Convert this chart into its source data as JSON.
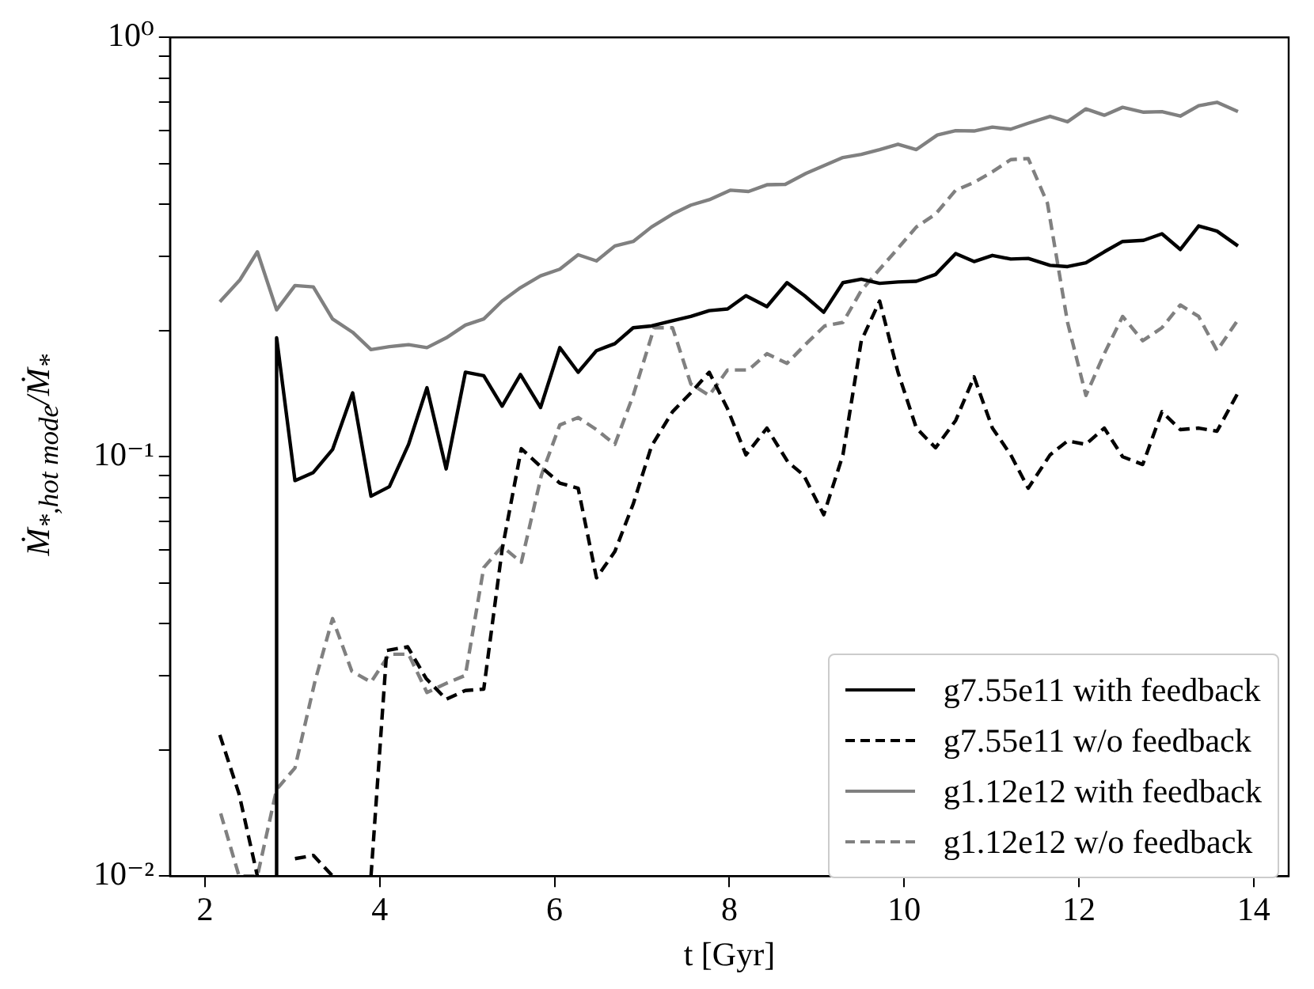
{
  "chart_data": {
    "type": "line",
    "xlabel": "t [Gyr]",
    "ylabel": "Ṁ$_{*,hot mode}$/Ṁ$_{*}$",
    "log": "y",
    "grid": false,
    "legend": "bottom right",
    "marker": "none",
    "xlim": [
      1.6,
      14.4
    ],
    "xticks": [
      2,
      4,
      6,
      8,
      10,
      12,
      14
    ],
    "ylim": [
      0.01,
      1
    ],
    "yticks": [
      {
        "value": 0.01,
        "label": "10⁻²"
      },
      {
        "value": 0.02,
        "label": null
      },
      {
        "value": 0.03,
        "label": null
      },
      {
        "value": 0.04,
        "label": null
      },
      {
        "value": 0.05,
        "label": null
      },
      {
        "value": 0.06,
        "label": null
      },
      {
        "value": 0.07,
        "label": null
      },
      {
        "value": 0.08,
        "label": null
      },
      {
        "value": 0.09,
        "label": null
      },
      {
        "value": 0.1,
        "label": "10⁻¹"
      },
      {
        "value": 0.2,
        "label": null
      },
      {
        "value": 0.3,
        "label": null
      },
      {
        "value": 0.4,
        "label": null
      },
      {
        "value": 0.5,
        "label": null
      },
      {
        "value": 0.6,
        "label": null
      },
      {
        "value": 0.7,
        "label": null
      },
      {
        "value": 0.8,
        "label": null
      },
      {
        "value": 0.9,
        "label": null
      },
      {
        "value": 1,
        "label": "10⁰"
      }
    ],
    "series": [
      {
        "name": "g7.55e11 with feedback",
        "color": "#000000",
        "line_style": "solid",
        "x": [
          2.82,
          2.82,
          3.03,
          3.24,
          3.46,
          3.69,
          3.9,
          4.11,
          4.33,
          4.54,
          4.76,
          4.98,
          5.19,
          5.4,
          5.61,
          5.84,
          6.06,
          6.27,
          6.48,
          6.69,
          6.9,
          7.11,
          7.35,
          7.56,
          7.77,
          7.98,
          8.19,
          8.43,
          8.66,
          8.86,
          9.08,
          9.3,
          9.51,
          9.72,
          9.93,
          10.14,
          10.36,
          10.59,
          10.8,
          11.01,
          11.22,
          11.42,
          11.67,
          11.87,
          12.08,
          12.29,
          12.5,
          12.74,
          12.95,
          13.16,
          13.37,
          13.58,
          13.82
        ],
        "values": [
          0.01,
          0.192,
          0.0877,
          0.0917,
          0.104,
          0.142,
          0.0805,
          0.0848,
          0.107,
          0.146,
          0.0935,
          0.159,
          0.156,
          0.132,
          0.157,
          0.131,
          0.182,
          0.159,
          0.179,
          0.186,
          0.203,
          0.205,
          0.211,
          0.216,
          0.223,
          0.225,
          0.242,
          0.228,
          0.26,
          0.242,
          0.221,
          0.26,
          0.265,
          0.259,
          0.261,
          0.262,
          0.272,
          0.305,
          0.292,
          0.302,
          0.296,
          0.297,
          0.286,
          0.284,
          0.29,
          0.308,
          0.326,
          0.328,
          0.34,
          0.312,
          0.355,
          0.345,
          0.318
        ]
      },
      {
        "name": "g7.55e11 w/o feedback",
        "color": "#000000",
        "line_style": "dashed",
        "x": [
          2.17,
          2.39,
          2.6,
          2.82,
          3.03,
          3.24,
          3.46,
          3.69,
          3.9,
          4.08,
          4.32,
          4.53,
          4.76,
          4.98,
          5.19,
          5.4,
          5.62,
          5.85,
          6.06,
          6.27,
          6.48,
          6.69,
          6.9,
          7.11,
          7.35,
          7.56,
          7.77,
          7.98,
          8.19,
          8.43,
          8.67,
          8.85,
          9.08,
          9.3,
          9.51,
          9.72,
          9.93,
          10.14,
          10.36,
          10.59,
          10.8,
          11.01,
          11.22,
          11.42,
          11.67,
          11.87,
          12.08,
          12.29,
          12.5,
          12.73,
          12.95,
          13.16,
          13.37,
          13.58,
          13.82
        ],
        "values": [
          0.0217,
          0.0157,
          0.01,
          null,
          0.011,
          0.0112,
          0.01,
          null,
          0.01,
          0.0345,
          0.0352,
          0.0296,
          0.0264,
          0.0277,
          0.0279,
          0.06,
          0.1045,
          0.0944,
          0.0865,
          0.0841,
          0.0514,
          0.0594,
          0.0771,
          0.106,
          0.128,
          0.142,
          0.159,
          0.13,
          0.101,
          0.117,
          0.0971,
          0.0904,
          0.0727,
          0.101,
          0.189,
          0.235,
          0.159,
          0.117,
          0.105,
          0.122,
          0.155,
          0.117,
          0.101,
          0.0841,
          0.101,
          0.109,
          0.107,
          0.117,
          0.1,
          0.0958,
          0.128,
          0.116,
          0.117,
          0.115,
          0.142
        ]
      },
      {
        "name": "g1.12e12 with feedback",
        "color": "#808080",
        "line_style": "solid",
        "x": [
          2.17,
          2.4,
          2.6,
          2.82,
          3.03,
          3.24,
          3.46,
          3.69,
          3.9,
          4.11,
          4.33,
          4.54,
          4.76,
          4.98,
          5.19,
          5.4,
          5.61,
          5.84,
          6.06,
          6.27,
          6.48,
          6.69,
          6.9,
          7.11,
          7.35,
          7.56,
          7.77,
          8.01,
          8.22,
          8.43,
          8.64,
          8.88,
          9.09,
          9.3,
          9.51,
          9.72,
          9.93,
          10.14,
          10.38,
          10.59,
          10.8,
          11.01,
          11.22,
          11.42,
          11.67,
          11.87,
          12.08,
          12.29,
          12.5,
          12.74,
          12.95,
          13.16,
          13.37,
          13.58,
          13.82
        ],
        "values": [
          0.234,
          0.264,
          0.308,
          0.224,
          0.256,
          0.254,
          0.213,
          0.198,
          0.18,
          0.183,
          0.185,
          0.182,
          0.192,
          0.206,
          0.213,
          0.235,
          0.253,
          0.27,
          0.28,
          0.303,
          0.293,
          0.318,
          0.326,
          0.353,
          0.379,
          0.398,
          0.41,
          0.432,
          0.429,
          0.445,
          0.446,
          0.474,
          0.495,
          0.517,
          0.526,
          0.54,
          0.556,
          0.54,
          0.585,
          0.599,
          0.598,
          0.611,
          0.604,
          0.624,
          0.648,
          0.629,
          0.675,
          0.652,
          0.681,
          0.663,
          0.665,
          0.649,
          0.687,
          0.7,
          0.665
        ]
      },
      {
        "name": "g1.12e12 w/o feedback",
        "color": "#808080",
        "line_style": "dashed",
        "x": [
          2.18,
          2.39,
          2.6,
          2.82,
          3.03,
          3.26,
          3.46,
          3.68,
          3.9,
          4.11,
          4.33,
          4.54,
          4.76,
          4.98,
          5.19,
          5.4,
          5.62,
          5.85,
          6.06,
          6.27,
          6.48,
          6.69,
          6.9,
          7.14,
          7.35,
          7.56,
          7.77,
          7.98,
          8.22,
          8.43,
          8.66,
          8.88,
          9.09,
          9.3,
          9.51,
          9.72,
          9.93,
          10.14,
          10.36,
          10.59,
          10.8,
          11.01,
          11.22,
          11.42,
          11.64,
          11.87,
          12.08,
          12.29,
          12.5,
          12.73,
          12.95,
          13.16,
          13.37,
          13.58,
          13.82
        ],
        "values": [
          0.0141,
          0.01,
          0.01,
          0.0161,
          0.0181,
          0.0292,
          0.0411,
          0.0308,
          0.029,
          0.0338,
          0.0338,
          0.0274,
          0.0288,
          0.0301,
          0.0544,
          0.0611,
          0.056,
          0.0904,
          0.119,
          0.124,
          0.116,
          0.107,
          0.14,
          0.203,
          0.203,
          0.149,
          0.14,
          0.161,
          0.161,
          0.176,
          0.167,
          0.186,
          0.205,
          0.209,
          0.249,
          0.28,
          0.314,
          0.353,
          0.379,
          0.432,
          0.451,
          0.478,
          0.511,
          0.514,
          0.402,
          0.209,
          0.14,
          0.176,
          0.216,
          0.189,
          0.203,
          0.23,
          0.216,
          0.179,
          0.212
        ]
      }
    ]
  }
}
